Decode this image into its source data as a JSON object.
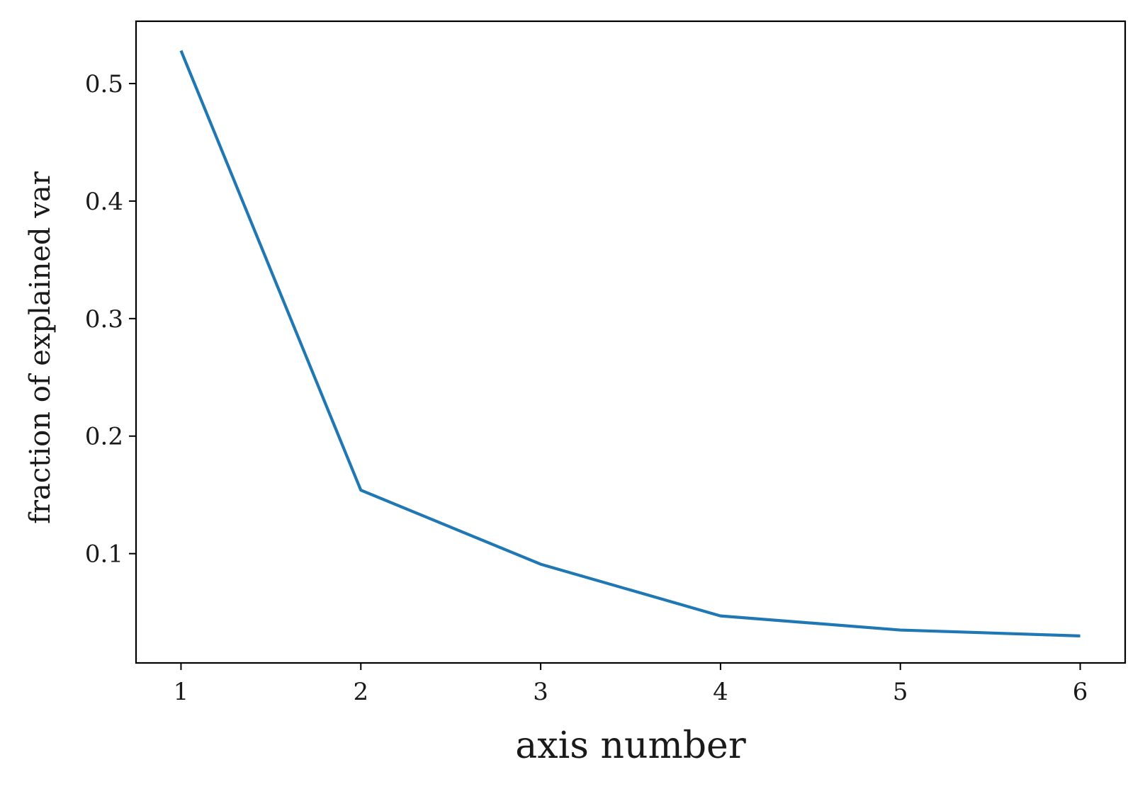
{
  "chart_data": {
    "type": "line",
    "title": "",
    "xlabel": "axis number",
    "ylabel": "fraction of explained var",
    "x": [
      1,
      2,
      3,
      4,
      5,
      6
    ],
    "series": [
      {
        "values": [
          0.528,
          0.154,
          0.091,
          0.047,
          0.035,
          0.03
        ]
      }
    ],
    "xlim": [
      0.75,
      6.25
    ],
    "ylim": [
      0.007,
      0.553
    ],
    "xticks": [
      1,
      2,
      3,
      4,
      5,
      6
    ],
    "xtick_labels": [
      "1",
      "2",
      "3",
      "4",
      "5",
      "6"
    ],
    "yticks": [
      0.1,
      0.2,
      0.3,
      0.4,
      0.5
    ],
    "ytick_labels": [
      "0.1",
      "0.2",
      "0.3",
      "0.4",
      "0.5"
    ],
    "grid": false,
    "legend": "none",
    "colors": {
      "series": "#1f77b4",
      "axes": "#000000"
    }
  }
}
